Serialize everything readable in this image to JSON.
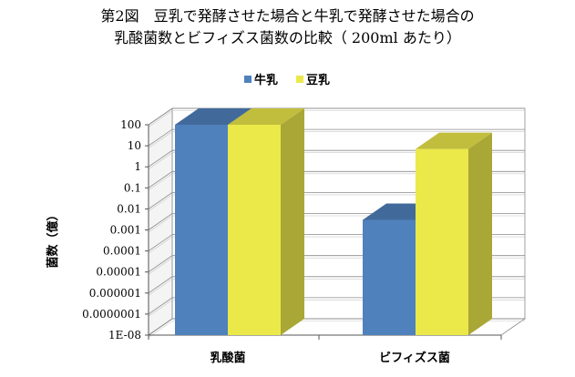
{
  "title": {
    "line1": "第2図　豆乳で発酵させた場合と牛乳で発酵させた場合の",
    "line2": "乳酸菌数とビフィズス菌数の比較（ 200ml あたり）"
  },
  "chart_data": {
    "type": "bar",
    "style": "3d-clustered-column",
    "log_scale": true,
    "categories": [
      "乳酸菌",
      "ビフィズス菌"
    ],
    "series": [
      {
        "name": "牛乳",
        "color": "#4F81BD",
        "values": [
          100,
          0.003
        ]
      },
      {
        "name": "豆乳",
        "color": "#EBE84A",
        "values": [
          100,
          7
        ]
      }
    ],
    "ylabel": "菌数（億）",
    "ylim": [
      1e-08,
      100
    ],
    "yticks": [
      "1E-08",
      "0.0000001",
      "0.000001",
      "0.00001",
      "0.0001",
      "0.001",
      "0.01",
      "0.1",
      "1",
      "10",
      "100"
    ],
    "grid": true,
    "legend_position": "top"
  }
}
